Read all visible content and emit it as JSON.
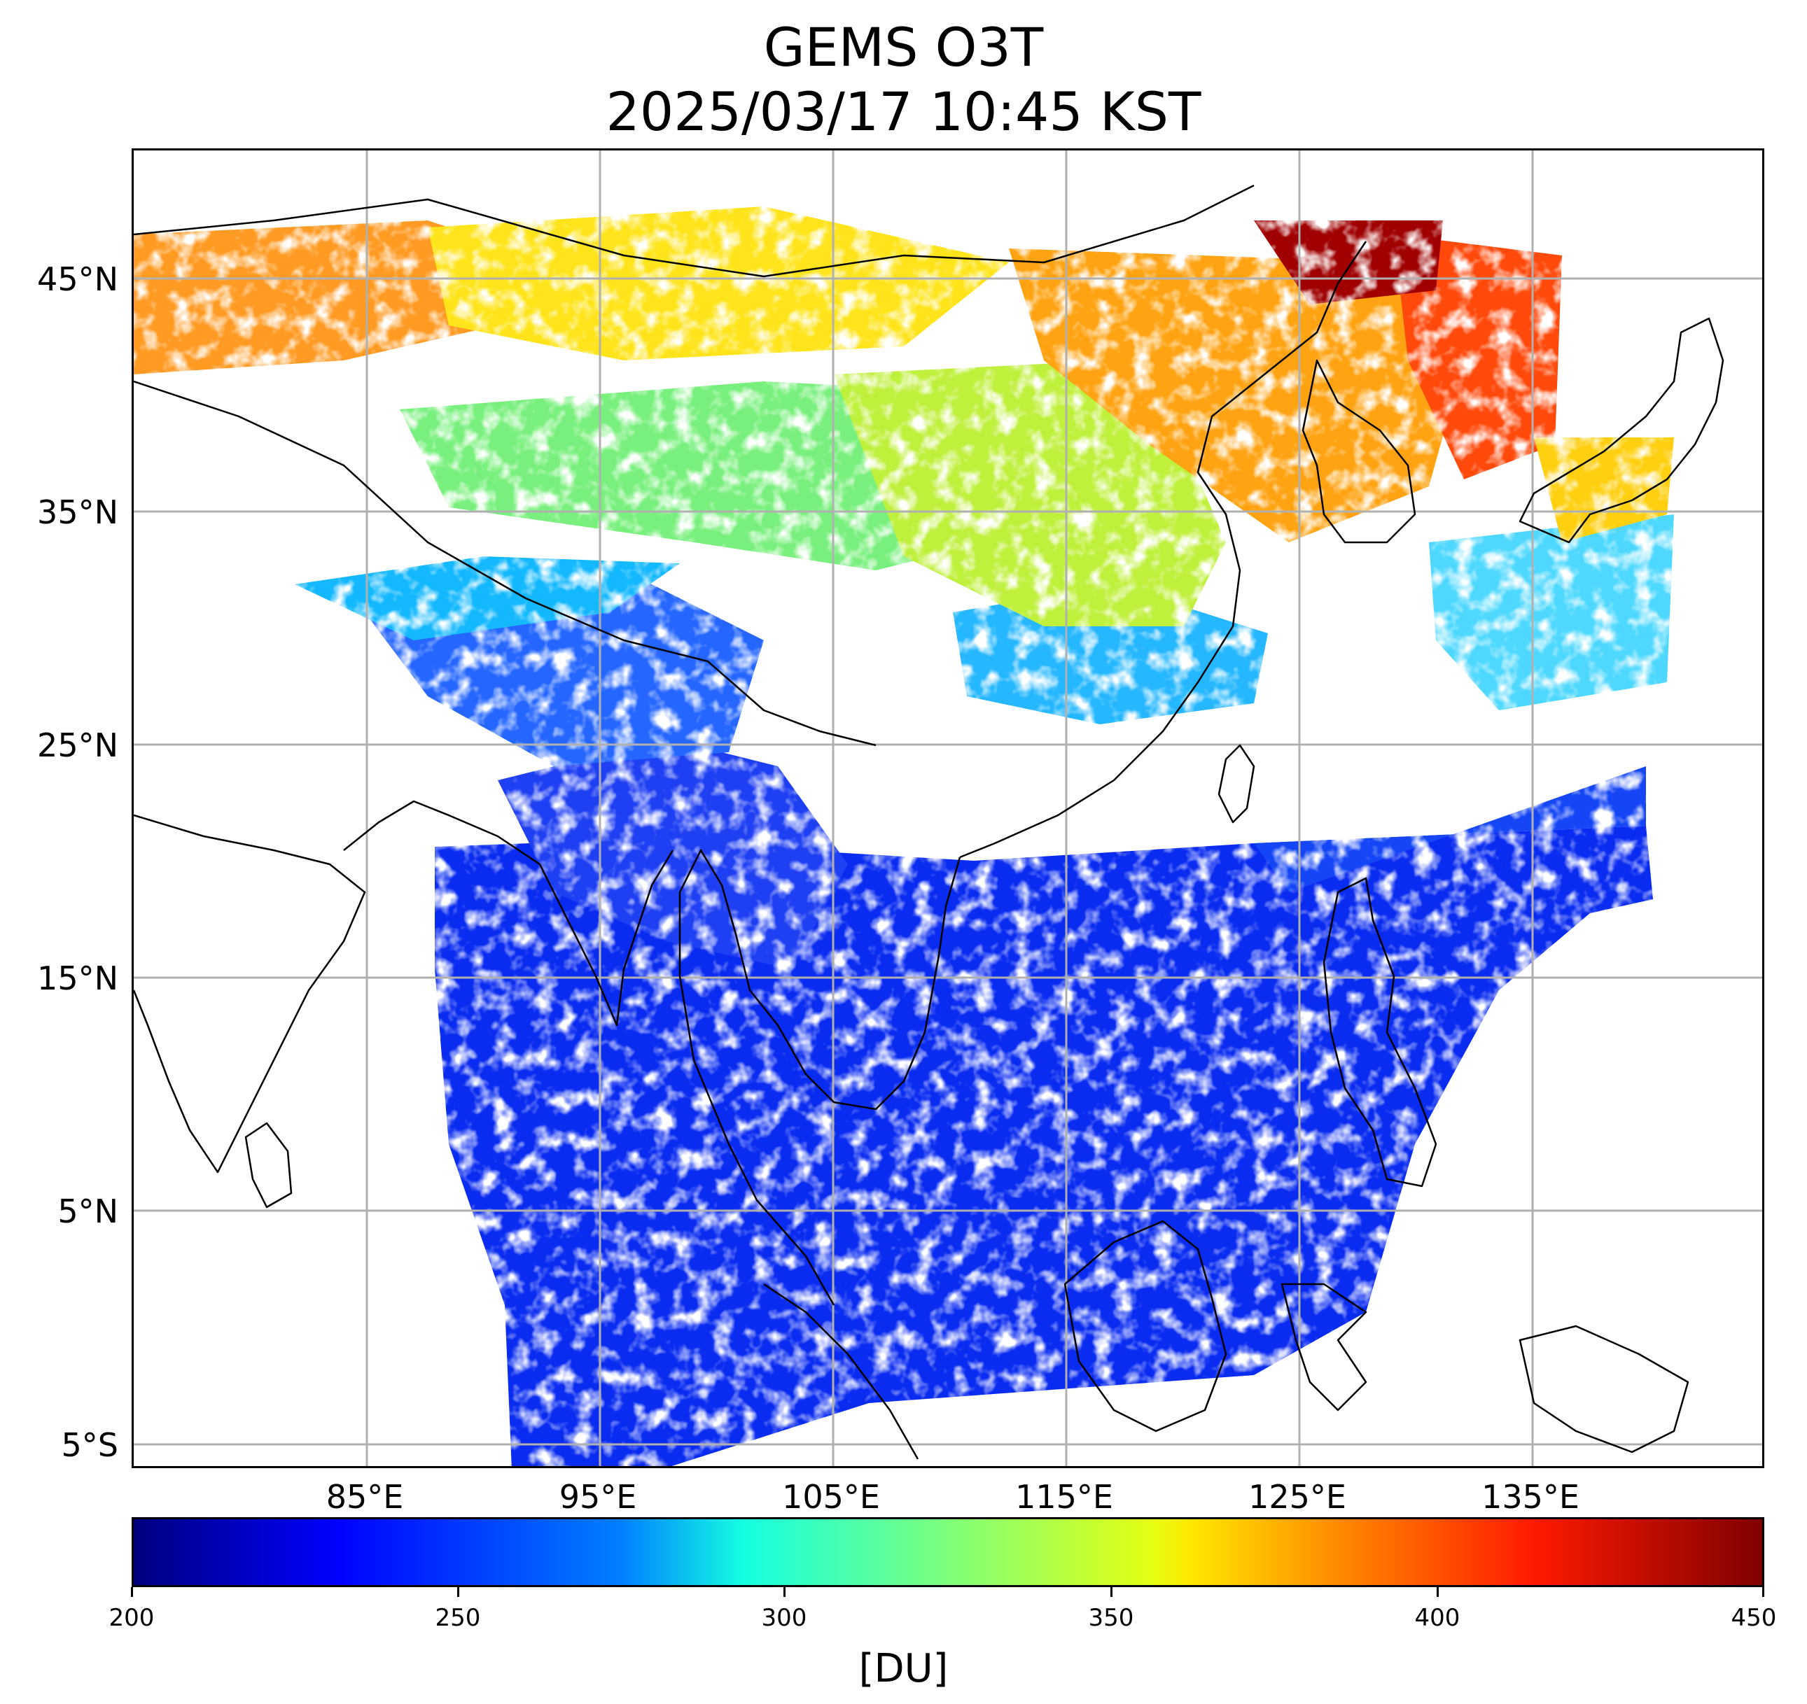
{
  "title": {
    "line1": "GEMS O3T",
    "line2": "2025/03/17 10:45 KST"
  },
  "map": {
    "lat_labels": [
      "45°N",
      "35°N",
      "25°N",
      "15°N",
      "5°N",
      "5°S"
    ],
    "lon_labels": [
      "85°E",
      "95°E",
      "105°E",
      "115°E",
      "125°E",
      "135°E"
    ],
    "gridlines": true,
    "gridline_color": "#b0b0b0",
    "coastline_color": "#000000",
    "projection": "lat-lon"
  },
  "colorbar": {
    "ticks": [
      "200",
      "250",
      "300",
      "350",
      "400",
      "450"
    ],
    "unit": "[DU]",
    "colormap": "jet",
    "min": 200,
    "max": 450
  }
}
